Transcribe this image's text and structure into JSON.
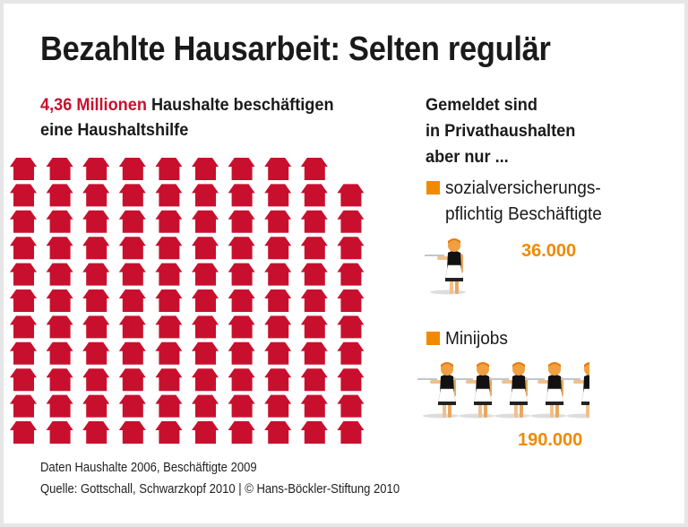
{
  "title": "Bezahlte Hausarbeit: Selten regulär",
  "left_heading": {
    "highlight": "4,36 Millionen",
    "rest_line1": " Haushalte beschäftigen",
    "line2": "eine Haushaltshilfe"
  },
  "right_heading": {
    "line1": "Gemeldet sind",
    "line2": "in Privathaushalten",
    "line3": "aber nur ..."
  },
  "colors": {
    "house": "#c8102e",
    "accent": "#f08a00",
    "text": "#1a1a1a"
  },
  "chart_data": {
    "type": "pictogram",
    "icon_value": 40000,
    "series": [
      {
        "name": "Haushalte mit Haushaltshilfe",
        "value": 4360000,
        "icon": "house-icon",
        "icons_shown": 109,
        "columns": 10,
        "rows": 11
      },
      {
        "name": "sozialversicherungspflichtig Beschäftigte",
        "value": 36000,
        "value_label": "36.000",
        "icon": "waitress-figure-icon",
        "icons_shown": 0.9
      },
      {
        "name": "Minijobs",
        "value": 190000,
        "value_label": "190.000",
        "icon": "waitress-figure-icon",
        "icons_shown": 4.75
      }
    ]
  },
  "legend": {
    "svp_line1": "sozialversicherungs-",
    "svp_line2": "pflichtig Beschäftigte",
    "minijobs": "Minijobs"
  },
  "footer": {
    "line1": "Daten Haushalte 2006, Beschäftigte 2009",
    "line2": "Quelle: Gottschall, Schwarzkopf 2010 | © Hans-Böckler-Stiftung 2010"
  }
}
